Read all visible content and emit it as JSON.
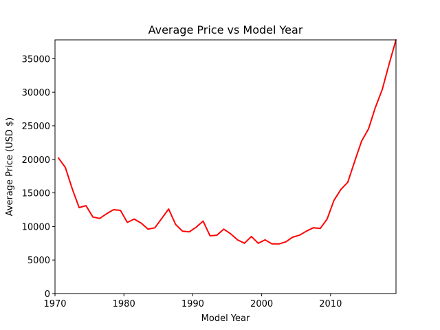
{
  "chart_data": {
    "type": "line",
    "title": "Average Price vs Model Year",
    "xlabel": "Model Year",
    "ylabel": "Average Price (USD $)",
    "xlim": [
      1970,
      2019.5
    ],
    "ylim": [
      0,
      37800
    ],
    "xticks": [
      1970,
      1980,
      1990,
      2000,
      2010
    ],
    "yticks": [
      0,
      5000,
      10000,
      15000,
      20000,
      25000,
      30000,
      35000
    ],
    "grid": false,
    "legend": "none",
    "series": [
      {
        "color": "#ff0000",
        "x": [
          1970.5,
          1971.5,
          1972.5,
          1973.5,
          1974.5,
          1975.5,
          1976.5,
          1977.5,
          1978.5,
          1979.5,
          1980.5,
          1981.5,
          1982.5,
          1983.5,
          1984.5,
          1985.5,
          1986.5,
          1987.5,
          1988.5,
          1989.5,
          1990.5,
          1991.5,
          1992.5,
          1993.5,
          1994.5,
          1995.5,
          1996.5,
          1997.5,
          1998.5,
          1999.5,
          2000.5,
          2001.5,
          2002.5,
          2003.5,
          2004.5,
          2005.5,
          2006.5,
          2007.5,
          2008.5,
          2009.5,
          2010.5,
          2011.5,
          2012.5,
          2013.5,
          2014.5,
          2015.5,
          2016.5,
          2017.5,
          2018.5,
          2019.5
        ],
        "y": [
          20200,
          18800,
          15600,
          12800,
          13100,
          11400,
          11200,
          11900,
          12500,
          12400,
          10600,
          11100,
          10500,
          9600,
          9800,
          11200,
          12600,
          10300,
          9300,
          9200,
          9900,
          10800,
          8600,
          8700,
          9600,
          8900,
          8000,
          7500,
          8500,
          7500,
          8000,
          7400,
          7400,
          7700,
          8400,
          8700,
          9300,
          9800,
          9700,
          11100,
          13900,
          15500,
          16600,
          19700,
          22700,
          24500,
          27700,
          30400,
          34200,
          37800
        ]
      }
    ]
  }
}
